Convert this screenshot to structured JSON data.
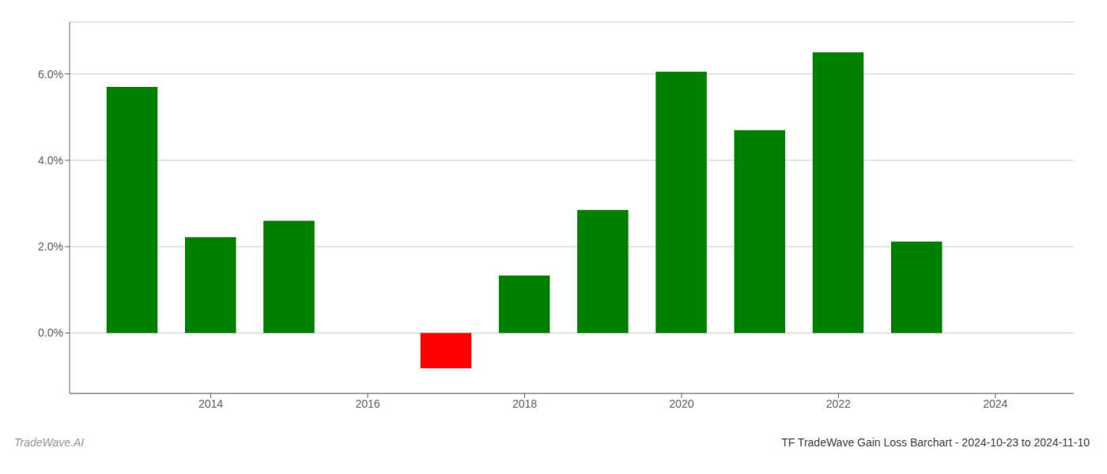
{
  "chart_data": {
    "type": "bar",
    "title": "TF TradeWave Gain Loss Barchart - 2024-10-23 to 2024-11-10",
    "annotations": [
      "TradeWave.AI"
    ],
    "x": [
      2013,
      2014,
      2015,
      2017,
      2018,
      2019,
      2020,
      2021,
      2022,
      2023
    ],
    "values": [
      5.7,
      2.22,
      2.6,
      -0.82,
      1.33,
      2.85,
      6.05,
      4.7,
      6.5,
      2.12
    ],
    "colors": [
      "#008000",
      "#008000",
      "#008000",
      "#ff0000",
      "#008000",
      "#008000",
      "#008000",
      "#008000",
      "#008000",
      "#008000"
    ],
    "xlim": [
      2012.2,
      2025.0
    ],
    "xticks": [
      2014,
      2016,
      2018,
      2020,
      2022,
      2024
    ],
    "ylim": [
      -1.4,
      7.2
    ],
    "yticks": [
      {
        "value": 0.0,
        "label": "0.0%"
      },
      {
        "value": 2.0,
        "label": "2.0%"
      },
      {
        "value": 4.0,
        "label": "4.0%"
      },
      {
        "value": 6.0,
        "label": "6.0%"
      }
    ],
    "grid": true
  }
}
